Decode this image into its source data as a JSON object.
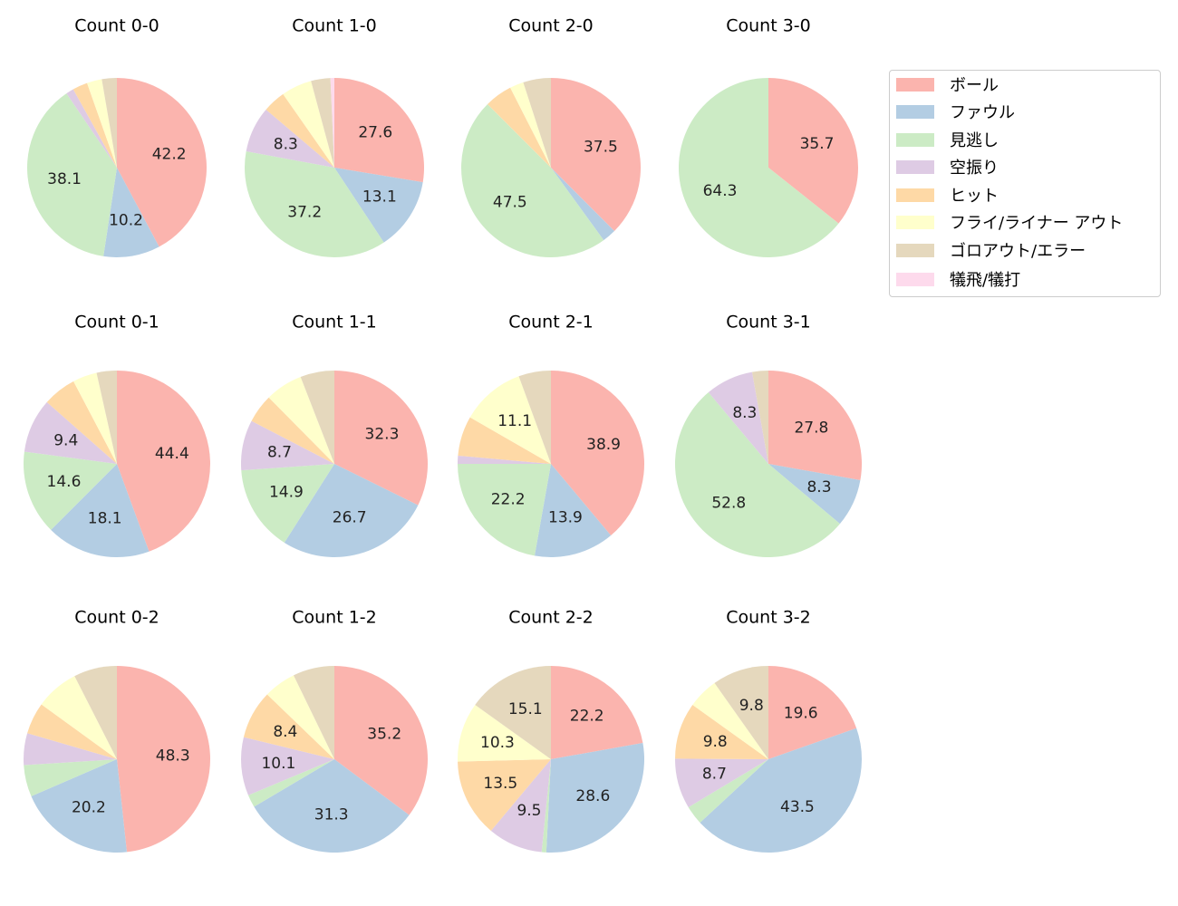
{
  "chart_data": [
    {
      "type": "pie",
      "title": "Count 0-0",
      "values": [
        42.2,
        10.2,
        38.1,
        1.4,
        2.7,
        2.7,
        2.7,
        0
      ]
    },
    {
      "type": "pie",
      "title": "Count 1-0",
      "values": [
        27.6,
        13.1,
        37.2,
        8.3,
        4.1,
        5.5,
        3.5,
        0.7
      ]
    },
    {
      "type": "pie",
      "title": "Count 2-0",
      "values": [
        37.5,
        2.5,
        47.5,
        0,
        5.0,
        2.5,
        5.0,
        0
      ]
    },
    {
      "type": "pie",
      "title": "Count 3-0",
      "values": [
        35.7,
        0,
        64.3,
        0,
        0,
        0,
        0,
        0
      ]
    },
    {
      "type": "pie",
      "title": "Count 0-1",
      "values": [
        44.4,
        18.1,
        14.6,
        9.4,
        5.8,
        4.2,
        3.5,
        0
      ]
    },
    {
      "type": "pie",
      "title": "Count 1-1",
      "values": [
        32.3,
        26.7,
        14.9,
        8.7,
        5.0,
        6.5,
        5.9,
        0
      ]
    },
    {
      "type": "pie",
      "title": "Count 2-1",
      "values": [
        38.9,
        13.9,
        22.2,
        1.4,
        6.9,
        11.1,
        5.6,
        0
      ]
    },
    {
      "type": "pie",
      "title": "Count 3-1",
      "values": [
        27.8,
        8.3,
        52.8,
        8.3,
        0,
        0,
        2.8,
        0
      ]
    },
    {
      "type": "pie",
      "title": "Count 0-2",
      "values": [
        48.3,
        20.2,
        5.5,
        5.5,
        5.5,
        7.5,
        7.5,
        0
      ]
    },
    {
      "type": "pie",
      "title": "Count 1-2",
      "values": [
        35.2,
        31.3,
        2.2,
        10.1,
        8.4,
        5.6,
        7.2,
        0
      ]
    },
    {
      "type": "pie",
      "title": "Count 2-2",
      "values": [
        22.2,
        28.6,
        0.8,
        9.5,
        13.5,
        10.3,
        15.1,
        0
      ]
    },
    {
      "type": "pie",
      "title": "Count 3-2",
      "values": [
        19.6,
        43.5,
        3.3,
        8.7,
        9.8,
        5.3,
        9.8,
        0
      ]
    }
  ],
  "legend": {
    "placement": "top-right",
    "labels": [
      "ボール",
      "ファウル",
      "見逃し",
      "空振り",
      "ヒット",
      "フライ/ライナー アウト",
      "ゴロアウト/エラー",
      "犠飛/犠打"
    ],
    "colors": [
      "#fbb4ae",
      "#b3cde3",
      "#ccebc5",
      "#decbe4",
      "#fed9a6",
      "#ffffcc",
      "#e5d8bd",
      "#fddaec"
    ]
  }
}
